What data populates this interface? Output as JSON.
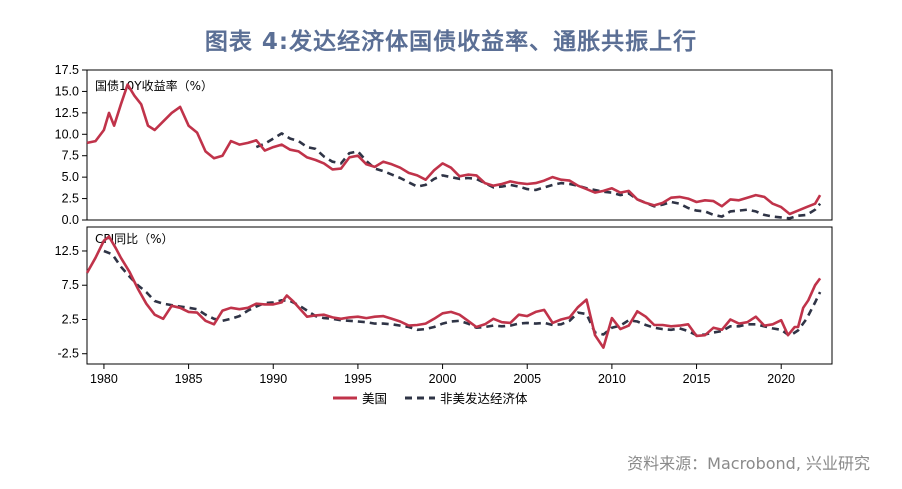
{
  "title": "图表 4:发达经济体国债收益率、通胀共振上行",
  "source": "资料来源：Macrobond, 兴业研究",
  "colors": {
    "us": "#c0334a",
    "non_us": "#2f3446",
    "title": "#5b6f95"
  },
  "legend": {
    "us": "美国",
    "non_us": "非美发达经济体"
  },
  "x_ticks": [
    "1980",
    "1985",
    "1990",
    "1995",
    "2000",
    "2005",
    "2010",
    "2015",
    "2020"
  ],
  "chart_data": [
    {
      "type": "line",
      "title": "国债10Y收益率（%）",
      "xlim": [
        1979,
        2023
      ],
      "ylim": [
        0,
        17.5
      ],
      "y_ticks": [
        "17.5",
        "15.0",
        "12.5",
        "10.0",
        "7.5",
        "5.0",
        "2.5",
        "0.0"
      ],
      "series": [
        {
          "name": "美国",
          "x": [
            1979.0,
            1979.5,
            1980.0,
            1980.3,
            1980.6,
            1981.0,
            1981.4,
            1981.8,
            1982.2,
            1982.6,
            1983.0,
            1983.5,
            1984.0,
            1984.5,
            1985.0,
            1985.5,
            1986.0,
            1986.5,
            1987.0,
            1987.5,
            1988.0,
            1988.5,
            1989.0,
            1989.5,
            1990.0,
            1990.5,
            1991.0,
            1991.5,
            1992.0,
            1992.5,
            1993.0,
            1993.5,
            1994.0,
            1994.5,
            1995.0,
            1995.5,
            1996.0,
            1996.5,
            1997.0,
            1997.5,
            1998.0,
            1998.5,
            1999.0,
            1999.5,
            2000.0,
            2000.5,
            2001.0,
            2001.5,
            2002.0,
            2002.5,
            2003.0,
            2003.5,
            2004.0,
            2004.5,
            2005.0,
            2005.5,
            2006.0,
            2006.5,
            2007.0,
            2007.5,
            2008.0,
            2008.5,
            2009.0,
            2009.5,
            2010.0,
            2010.5,
            2011.0,
            2011.5,
            2012.0,
            2012.5,
            2013.0,
            2013.5,
            2014.0,
            2014.5,
            2015.0,
            2015.5,
            2016.0,
            2016.5,
            2017.0,
            2017.5,
            2018.0,
            2018.5,
            2019.0,
            2019.5,
            2020.0,
            2020.5,
            2021.0,
            2021.5,
            2022.0,
            2022.3
          ],
          "values": [
            9.0,
            9.2,
            10.5,
            12.5,
            11.0,
            13.5,
            15.8,
            14.5,
            13.5,
            11.0,
            10.5,
            11.5,
            12.5,
            13.2,
            11.0,
            10.2,
            8.0,
            7.2,
            7.5,
            9.2,
            8.8,
            9.0,
            9.3,
            8.1,
            8.5,
            8.8,
            8.2,
            8.0,
            7.3,
            7.0,
            6.6,
            5.9,
            6.0,
            7.3,
            7.5,
            6.5,
            6.2,
            6.8,
            6.5,
            6.1,
            5.5,
            5.2,
            4.7,
            5.8,
            6.6,
            6.1,
            5.1,
            5.3,
            5.2,
            4.3,
            4.0,
            4.2,
            4.5,
            4.3,
            4.2,
            4.3,
            4.6,
            5.0,
            4.7,
            4.6,
            4.0,
            3.6,
            3.2,
            3.4,
            3.7,
            3.2,
            3.4,
            2.4,
            2.0,
            1.7,
            2.0,
            2.6,
            2.7,
            2.5,
            2.1,
            2.3,
            2.2,
            1.6,
            2.4,
            2.3,
            2.6,
            2.9,
            2.7,
            1.9,
            1.5,
            0.7,
            1.1,
            1.5,
            1.9,
            2.9
          ]
        },
        {
          "name": "非美发达经济体",
          "x": [
            1989.0,
            1989.5,
            1990.0,
            1990.5,
            1991.0,
            1991.5,
            1992.0,
            1992.5,
            1993.0,
            1993.5,
            1994.0,
            1994.5,
            1995.0,
            1995.5,
            1996.0,
            1996.5,
            1997.0,
            1997.5,
            1998.0,
            1998.5,
            1999.0,
            1999.5,
            2000.0,
            2000.5,
            2001.0,
            2001.5,
            2002.0,
            2002.5,
            2003.0,
            2003.5,
            2004.0,
            2004.5,
            2005.0,
            2005.5,
            2006.0,
            2006.5,
            2007.0,
            2007.5,
            2008.0,
            2008.5,
            2009.0,
            2009.5,
            2010.0,
            2010.5,
            2011.0,
            2011.5,
            2012.0,
            2012.5,
            2013.0,
            2013.5,
            2014.0,
            2014.5,
            2015.0,
            2015.5,
            2016.0,
            2016.5,
            2017.0,
            2017.5,
            2018.0,
            2018.5,
            2019.0,
            2019.5,
            2020.0,
            2020.5,
            2021.0,
            2021.5,
            2022.0,
            2022.3
          ],
          "values": [
            8.5,
            8.9,
            9.5,
            10.1,
            9.5,
            9.2,
            8.5,
            8.3,
            7.4,
            6.8,
            6.6,
            7.8,
            8.0,
            6.9,
            6.0,
            5.7,
            5.3,
            4.9,
            4.4,
            3.9,
            4.1,
            4.8,
            5.2,
            5.0,
            4.8,
            4.9,
            4.8,
            4.3,
            3.8,
            3.9,
            4.1,
            3.9,
            3.6,
            3.5,
            3.8,
            4.1,
            4.3,
            4.2,
            4.0,
            3.7,
            3.5,
            3.3,
            3.2,
            2.9,
            3.1,
            2.4,
            2.0,
            1.6,
            1.8,
            2.1,
            1.9,
            1.4,
            1.1,
            1.0,
            0.6,
            0.4,
            1.0,
            1.1,
            1.2,
            1.0,
            0.6,
            0.4,
            0.3,
            0.2,
            0.5,
            0.6,
            1.2,
            1.9
          ]
        }
      ]
    },
    {
      "type": "line",
      "title": "CPI同比（%）",
      "xlim": [
        1979,
        2023
      ],
      "ylim": [
        -4,
        16
      ],
      "y_ticks": [
        "12.5",
        "7.5",
        "2.5",
        "-2.5"
      ],
      "series": [
        {
          "name": "美国",
          "x": [
            1979.0,
            1979.5,
            1980.0,
            1980.3,
            1980.7,
            1981.0,
            1981.5,
            1982.0,
            1982.5,
            1983.0,
            1983.5,
            1984.0,
            1984.5,
            1985.0,
            1985.5,
            1986.0,
            1986.5,
            1987.0,
            1987.5,
            1988.0,
            1988.5,
            1989.0,
            1989.5,
            1990.0,
            1990.5,
            1990.8,
            1991.2,
            1991.6,
            1992.0,
            1992.5,
            1993.0,
            1993.5,
            1994.0,
            1994.5,
            1995.0,
            1995.5,
            1996.0,
            1996.5,
            1997.0,
            1997.5,
            1998.0,
            1998.5,
            1999.0,
            1999.5,
            2000.0,
            2000.5,
            2001.0,
            2001.5,
            2002.0,
            2002.5,
            2003.0,
            2003.5,
            2004.0,
            2004.5,
            2005.0,
            2005.5,
            2006.0,
            2006.5,
            2007.0,
            2007.5,
            2008.0,
            2008.5,
            2009.0,
            2009.5,
            2010.0,
            2010.5,
            2011.0,
            2011.5,
            2012.0,
            2012.5,
            2013.0,
            2013.5,
            2014.0,
            2014.5,
            2015.0,
            2015.5,
            2016.0,
            2016.5,
            2017.0,
            2017.5,
            2018.0,
            2018.5,
            2019.0,
            2019.5,
            2020.0,
            2020.4,
            2020.8,
            2021.0,
            2021.3,
            2021.6,
            2022.0,
            2022.3
          ],
          "values": [
            9.3,
            11.5,
            14.0,
            14.6,
            12.9,
            11.5,
            9.5,
            7.0,
            4.8,
            3.2,
            2.6,
            4.5,
            4.2,
            3.6,
            3.5,
            2.3,
            1.8,
            3.8,
            4.2,
            4.0,
            4.2,
            4.8,
            4.7,
            4.7,
            5.0,
            6.0,
            5.1,
            4.0,
            2.9,
            3.1,
            3.2,
            2.8,
            2.6,
            2.8,
            2.9,
            2.7,
            2.9,
            3.0,
            2.6,
            2.2,
            1.6,
            1.7,
            1.9,
            2.6,
            3.4,
            3.6,
            3.2,
            2.3,
            1.4,
            1.8,
            2.6,
            2.1,
            2.0,
            3.2,
            3.0,
            3.6,
            3.9,
            2.0,
            2.5,
            2.8,
            4.3,
            5.4,
            0.2,
            -1.6,
            2.7,
            1.1,
            1.6,
            3.7,
            2.9,
            1.7,
            1.7,
            1.5,
            1.6,
            1.8,
            0.1,
            0.2,
            1.3,
            1.0,
            2.5,
            1.9,
            2.1,
            2.9,
            1.6,
            1.8,
            2.4,
            0.2,
            1.4,
            1.4,
            4.2,
            5.3,
            7.5,
            8.5
          ]
        },
        {
          "name": "非美发达经济体",
          "x": [
            1980.0,
            1980.5,
            1981.0,
            1981.5,
            1982.0,
            1982.5,
            1983.0,
            1983.5,
            1984.0,
            1984.5,
            1985.0,
            1985.5,
            1986.0,
            1986.5,
            1987.0,
            1987.5,
            1988.0,
            1988.5,
            1989.0,
            1989.5,
            1990.0,
            1990.5,
            1991.0,
            1991.5,
            1992.0,
            1992.5,
            1993.0,
            1993.5,
            1994.0,
            1994.5,
            1995.0,
            1995.5,
            1996.0,
            1996.5,
            1997.0,
            1997.5,
            1998.0,
            1998.5,
            1999.0,
            1999.5,
            2000.0,
            2000.5,
            2001.0,
            2001.5,
            2002.0,
            2002.5,
            2003.0,
            2003.5,
            2004.0,
            2004.5,
            2005.0,
            2005.5,
            2006.0,
            2006.5,
            2007.0,
            2007.5,
            2008.0,
            2008.5,
            2009.0,
            2009.5,
            2010.0,
            2010.5,
            2011.0,
            2011.5,
            2012.0,
            2012.5,
            2013.0,
            2013.5,
            2014.0,
            2014.5,
            2015.0,
            2015.5,
            2016.0,
            2016.5,
            2017.0,
            2017.5,
            2018.0,
            2018.5,
            2019.0,
            2019.5,
            2020.0,
            2020.5,
            2021.0,
            2021.5,
            2022.0,
            2022.3
          ],
          "values": [
            12.5,
            12.0,
            10.2,
            8.8,
            7.5,
            6.5,
            5.2,
            4.8,
            4.6,
            4.4,
            4.2,
            4.0,
            3.2,
            2.6,
            2.3,
            2.6,
            3.0,
            3.8,
            4.4,
            4.9,
            5.0,
            5.3,
            5.2,
            4.6,
            3.8,
            3.0,
            2.7,
            2.6,
            2.4,
            2.3,
            2.2,
            2.1,
            1.9,
            1.9,
            1.8,
            1.6,
            1.4,
            1.0,
            1.1,
            1.4,
            1.9,
            2.2,
            2.3,
            1.9,
            1.3,
            1.4,
            1.6,
            1.5,
            1.6,
            1.9,
            2.0,
            1.9,
            2.0,
            1.7,
            1.8,
            2.3,
            3.5,
            3.3,
            0.6,
            0.3,
            1.3,
            1.6,
            2.4,
            2.2,
            1.7,
            1.3,
            1.1,
            1.0,
            1.2,
            0.8,
            0.2,
            0.3,
            0.6,
            0.8,
            1.5,
            1.5,
            1.8,
            1.8,
            1.5,
            1.2,
            1.0,
            0.1,
            0.9,
            2.6,
            5.0,
            6.5
          ]
        }
      ]
    }
  ]
}
